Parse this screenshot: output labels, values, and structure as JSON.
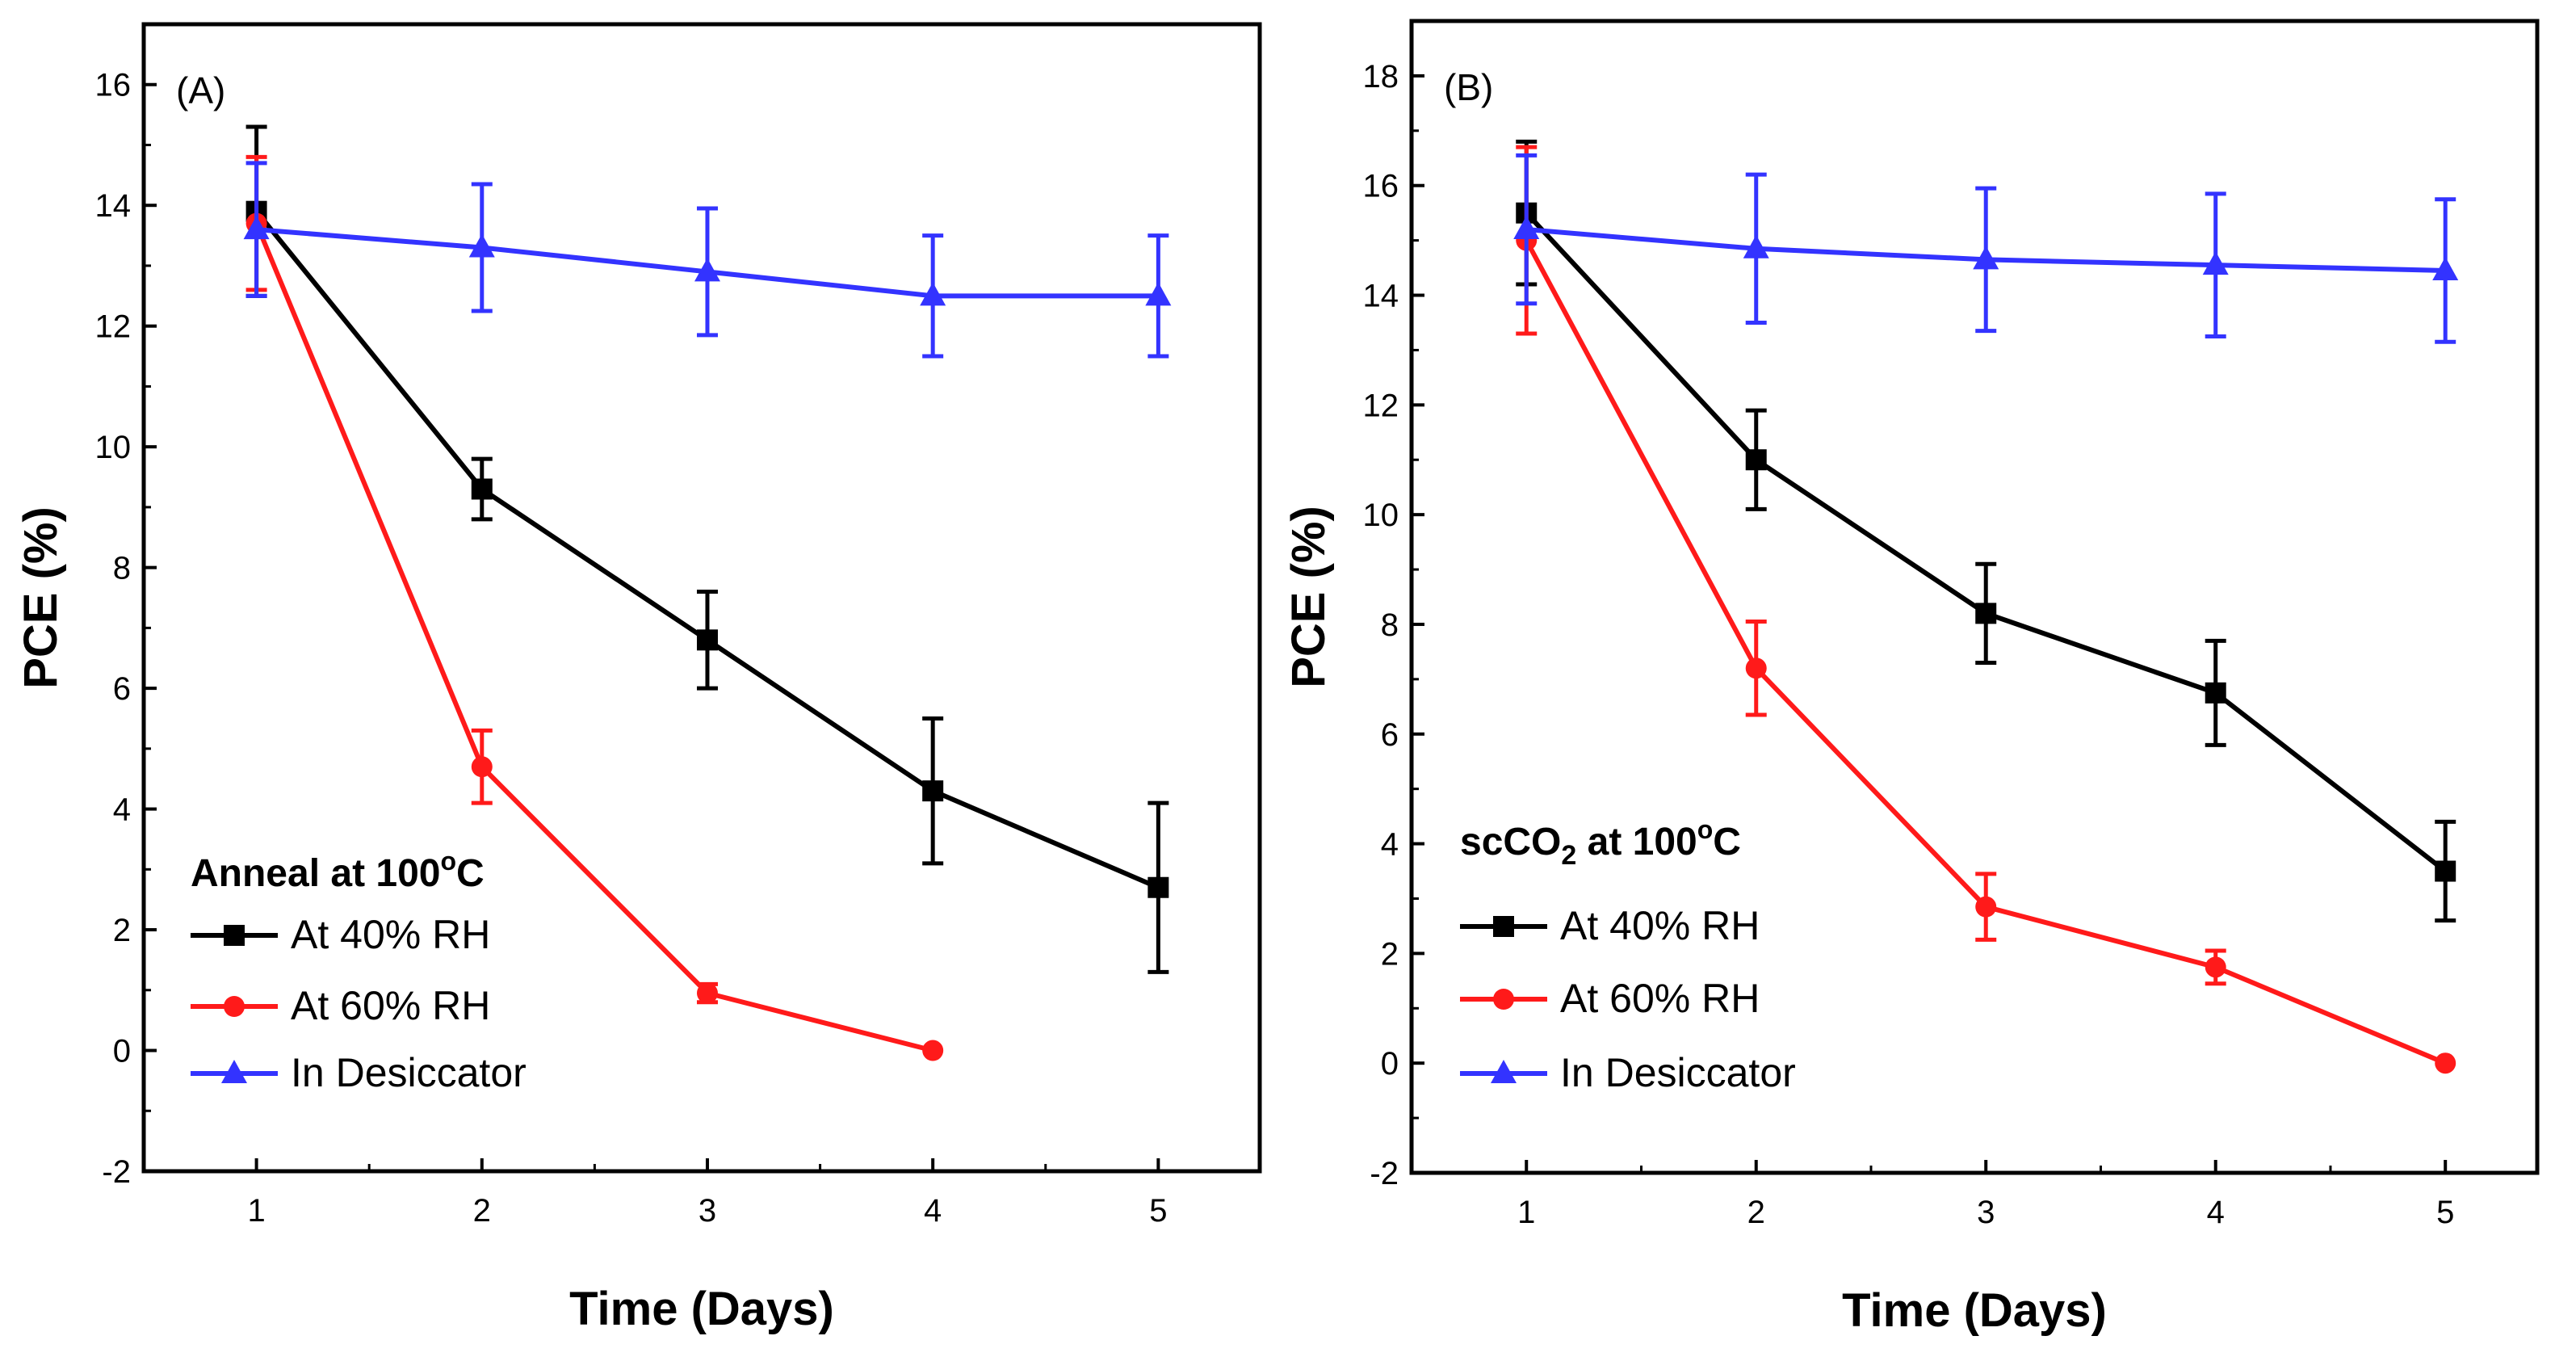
{
  "chart_data": [
    {
      "type": "line",
      "panel_label": "(A)",
      "xlabel": "Time (Days)",
      "ylabel": "PCE (%)",
      "xlim": [
        0.5,
        5.45
      ],
      "ylim": [
        -2,
        17
      ],
      "x_ticks": [
        1,
        2,
        3,
        4,
        5
      ],
      "y_ticks": [
        -2,
        0,
        2,
        4,
        6,
        8,
        10,
        12,
        14,
        16
      ],
      "legend_title": {
        "prefix": "Anneal at 100",
        "sup": "o",
        "suffix": "C",
        "sub": "",
        "rest": ""
      },
      "legend_position": "bottom-left",
      "series": [
        {
          "name": "At 40% RH",
          "color": "#000000",
          "marker": "square",
          "x": [
            1,
            2,
            3,
            4,
            5
          ],
          "y": [
            13.9,
            9.3,
            6.8,
            4.3,
            2.7
          ],
          "err": [
            1.4,
            0.5,
            0.8,
            1.2,
            1.4
          ]
        },
        {
          "name": "At 60% RH",
          "color": "#ff1a1a",
          "marker": "circle",
          "x": [
            1,
            2,
            3,
            4
          ],
          "y": [
            13.7,
            4.7,
            0.95,
            0.0
          ],
          "err": [
            1.1,
            0.6,
            0.15,
            0.0
          ]
        },
        {
          "name": "In Desiccator",
          "color": "#3333ff",
          "marker": "triangle",
          "x": [
            1,
            2,
            3,
            4,
            5
          ],
          "y": [
            13.6,
            13.3,
            12.9,
            12.5,
            12.5
          ],
          "err": [
            1.1,
            1.05,
            1.05,
            1.0,
            1.0
          ]
        }
      ]
    },
    {
      "type": "line",
      "panel_label": "(B)",
      "xlabel": "Time (Days)",
      "ylabel": "PCE (%)",
      "xlim": [
        0.5,
        5.4
      ],
      "ylim": [
        -2,
        19
      ],
      "x_ticks": [
        1,
        2,
        3,
        4,
        5
      ],
      "y_ticks": [
        -2,
        0,
        2,
        4,
        6,
        8,
        10,
        12,
        14,
        16,
        18
      ],
      "legend_title": {
        "prefix": "scCO",
        "sup": "",
        "suffix": "",
        "sub": "2",
        "rest": " at 100",
        "rest_sup": "o",
        "rest_suffix": "C"
      },
      "legend_position": "bottom-left",
      "series": [
        {
          "name": "At 40% RH",
          "color": "#000000",
          "marker": "square",
          "x": [
            1,
            2,
            3,
            4,
            5
          ],
          "y": [
            15.5,
            11.0,
            8.2,
            6.75,
            3.5
          ],
          "err": [
            1.3,
            0.9,
            0.9,
            0.95,
            0.9
          ]
        },
        {
          "name": "At 60% RH",
          "color": "#ff1a1a",
          "marker": "circle",
          "x": [
            1,
            2,
            3,
            4,
            5
          ],
          "y": [
            15.0,
            7.2,
            2.85,
            1.75,
            0.0
          ],
          "err": [
            1.7,
            0.85,
            0.6,
            0.3,
            0.0
          ]
        },
        {
          "name": "In Desiccator",
          "color": "#3333ff",
          "marker": "triangle",
          "x": [
            1,
            2,
            3,
            4,
            5
          ],
          "y": [
            15.2,
            14.85,
            14.65,
            14.55,
            14.45
          ],
          "err": [
            1.35,
            1.35,
            1.3,
            1.3,
            1.3
          ]
        }
      ]
    }
  ]
}
